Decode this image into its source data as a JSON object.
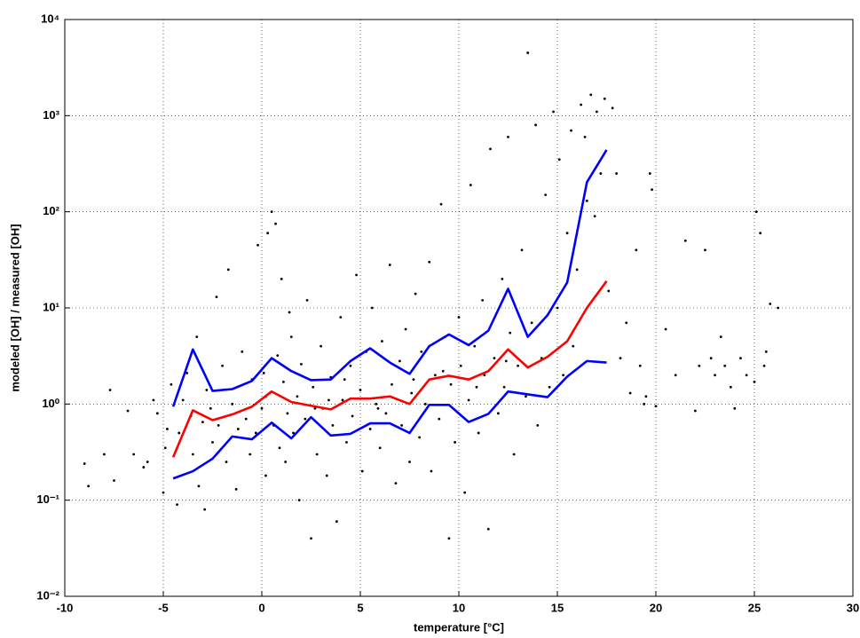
{
  "chart_data": {
    "type": "line",
    "xlabel": "temperature [°C]",
    "ylabel": "modeled [OH] / measured [OH]",
    "xlim": [
      -10,
      30
    ],
    "xticks": [
      -10,
      -5,
      0,
      5,
      10,
      15,
      20,
      25,
      30
    ],
    "ylim": [
      0.01,
      10000
    ],
    "yscale": "log",
    "yticks": [
      {
        "value": 0.01,
        "label": "10⁻²"
      },
      {
        "value": 0.1,
        "label": "10⁻¹"
      },
      {
        "value": 1,
        "label": "10⁰"
      },
      {
        "value": 10,
        "label": "10¹"
      },
      {
        "value": 100,
        "label": "10²"
      },
      {
        "value": 1000,
        "label": "10³"
      },
      {
        "value": 10000,
        "label": "10⁴"
      }
    ],
    "grid": true,
    "series": [
      {
        "type": "scatter",
        "color": "#000000",
        "x": [
          -9,
          -8.8,
          -8,
          -7.5,
          -7.7,
          -6.8,
          -6.5,
          -6,
          -5.8,
          -5.5,
          -5.3,
          -5,
          -4.9,
          -4.8,
          -4.6,
          -4.3,
          -4.2,
          -4,
          -3.8,
          -3.6,
          -3.5,
          -3.3,
          -3.2,
          -3,
          -2.9,
          -2.8,
          -2.6,
          -2.5,
          -2.3,
          -2.2,
          -2,
          -1.8,
          -1.7,
          -1.5,
          -1.3,
          -1.2,
          -1,
          -0.8,
          -0.6,
          -0.5,
          -0.3,
          -0.2,
          0,
          0.1,
          0.2,
          0.3,
          0.4,
          0.5,
          0.6,
          0.7,
          0.8,
          0.9,
          1,
          1.1,
          1.2,
          1.3,
          1.5,
          1.6,
          1.8,
          1.9,
          2,
          2.2,
          2.3,
          2.5,
          2.6,
          2.8,
          3,
          3.1,
          3.3,
          3.5,
          3.6,
          3.8,
          4,
          4.1,
          4.3,
          4.5,
          4.6,
          4.8,
          5,
          5.1,
          5.3,
          5.5,
          5.6,
          5.8,
          6,
          6.1,
          6.3,
          6.5,
          6.6,
          6.8,
          7,
          7.1,
          7.3,
          7.5,
          7.6,
          7.8,
          8,
          8.1,
          8.3,
          8.5,
          8.6,
          8.8,
          9,
          9.1,
          9.3,
          9.5,
          9.6,
          9.8,
          10,
          10.1,
          10.3,
          10.5,
          10.6,
          10.8,
          11,
          11.2,
          11.3,
          11.5,
          11.6,
          11.8,
          12,
          12.2,
          12.3,
          12.5,
          12.6,
          12.8,
          13,
          13.2,
          13.4,
          13.5,
          13.7,
          13.9,
          14,
          14.2,
          14.4,
          14.6,
          14.8,
          15,
          15.1,
          15.3,
          15.5,
          15.7,
          15.8,
          16,
          16.2,
          16.4,
          16.5,
          16.7,
          16.9,
          17,
          17.2,
          17.4,
          17.6,
          17.8,
          18,
          18.2,
          18.5,
          18.7,
          19,
          19.2,
          19.4,
          19.5,
          19.7,
          19.8,
          20,
          20.5,
          21,
          21.5,
          22,
          22.2,
          22.5,
          22.8,
          23,
          23.3,
          23.5,
          23.8,
          24,
          24.3,
          24.6,
          25,
          25.1,
          25.3,
          25.5,
          25.6,
          25.8,
          26.2,
          1.4,
          2.7,
          4.2,
          5.9,
          7.7,
          9.2,
          10.9,
          12.4,
          0.2,
          3.4
        ],
        "values": [
          0.24,
          0.14,
          0.3,
          0.16,
          1.4,
          0.85,
          0.3,
          0.22,
          0.25,
          1.1,
          0.8,
          0.12,
          0.35,
          0.55,
          1.6,
          0.09,
          0.5,
          1.1,
          2.1,
          0.75,
          0.3,
          5,
          0.14,
          0.65,
          0.08,
          1.4,
          0.9,
          0.4,
          13,
          0.6,
          2.5,
          0.25,
          25,
          1,
          0.13,
          0.55,
          3.5,
          0.7,
          0.3,
          1.8,
          0.5,
          45,
          0.9,
          2.1,
          0.18,
          60,
          1.3,
          100,
          0.6,
          75,
          3.2,
          0.35,
          20,
          1.7,
          0.25,
          0.8,
          5,
          0.5,
          1.2,
          0.1,
          2.6,
          0.7,
          12,
          0.04,
          1.5,
          0.3,
          4,
          0.9,
          0.18,
          1.9,
          0.6,
          0.06,
          8,
          1.1,
          0.4,
          2.5,
          0.75,
          22,
          1.4,
          0.2,
          3.5,
          0.55,
          10,
          1,
          0.35,
          4.5,
          0.8,
          28,
          1.6,
          0.15,
          2.8,
          0.6,
          6,
          0.25,
          1.3,
          14,
          0.45,
          3.5,
          1,
          30,
          0.2,
          2,
          0.7,
          120,
          5,
          0.04,
          1.6,
          0.4,
          8,
          2.5,
          0.12,
          1.1,
          190,
          4,
          0.5,
          12,
          2,
          0.05,
          450,
          3,
          0.8,
          20,
          1.5,
          600,
          5.5,
          0.3,
          2.5,
          40,
          1.2,
          4500,
          7,
          800,
          0.6,
          3,
          150,
          1.5,
          1100,
          10,
          350,
          2,
          60,
          700,
          4,
          25,
          1300,
          600,
          130,
          1650,
          90,
          1100,
          250,
          1500,
          15,
          1200,
          250,
          3,
          7,
          1.3,
          40,
          2.5,
          1,
          1.2,
          250,
          170,
          0.95,
          6,
          2,
          50,
          0.85,
          2.5,
          40,
          3,
          2,
          5,
          2.5,
          1.5,
          0.9,
          3,
          2,
          1.7,
          100,
          60,
          2.5,
          3.5,
          11,
          10,
          9,
          0.9,
          1.8,
          0.9,
          1.8,
          2.2,
          1.5,
          2.8,
          1.2,
          1.1
        ]
      },
      {
        "type": "line",
        "color": "#0000ff",
        "x": [
          -4.5,
          -3.5,
          -2.5,
          -1.5,
          -0.5,
          0.5,
          1.5,
          2.5,
          3.5,
          4.5,
          5.5,
          6.5,
          7.5,
          8.5,
          9.5,
          10.5,
          11.5,
          12.5,
          13.5,
          14.5,
          15.5,
          16.5,
          17.5
        ],
        "values": [
          0.94,
          3.7,
          1.37,
          1.43,
          1.74,
          3.0,
          2.2,
          1.77,
          1.8,
          2.8,
          3.8,
          2.7,
          2.06,
          4.0,
          5.3,
          4.1,
          5.8,
          15.8,
          5.0,
          8.4,
          18.4,
          203,
          440
        ]
      },
      {
        "type": "line",
        "color": "#0000ff",
        "x": [
          -4.5,
          -3.5,
          -2.5,
          -1.5,
          -0.5,
          0.5,
          1.5,
          2.5,
          3.5,
          4.5,
          5.5,
          6.5,
          7.5,
          8.5,
          9.5,
          10.5,
          11.5,
          12.5,
          13.5,
          14.5,
          15.5,
          16.5,
          17.5
        ],
        "values": [
          0.168,
          0.2,
          0.27,
          0.46,
          0.43,
          0.64,
          0.44,
          0.73,
          0.47,
          0.49,
          0.63,
          0.63,
          0.5,
          0.98,
          0.98,
          0.65,
          0.79,
          1.35,
          1.26,
          1.18,
          1.93,
          2.8,
          2.7
        ]
      },
      {
        "type": "line",
        "color": "#ff0000",
        "x": [
          -4.5,
          -3.5,
          -2.5,
          -1.5,
          -0.5,
          0.5,
          1.5,
          2.5,
          3.5,
          4.5,
          5.5,
          6.5,
          7.5,
          8.5,
          9.5,
          10.5,
          11.5,
          12.5,
          13.5,
          14.5,
          15.5,
          16.5,
          17.5
        ],
        "values": [
          0.28,
          0.86,
          0.68,
          0.78,
          0.94,
          1.35,
          1.05,
          0.96,
          0.88,
          1.14,
          1.14,
          1.2,
          1.0,
          1.8,
          1.97,
          1.8,
          2.2,
          3.7,
          2.4,
          3.1,
          4.5,
          10,
          19
        ]
      }
    ]
  }
}
